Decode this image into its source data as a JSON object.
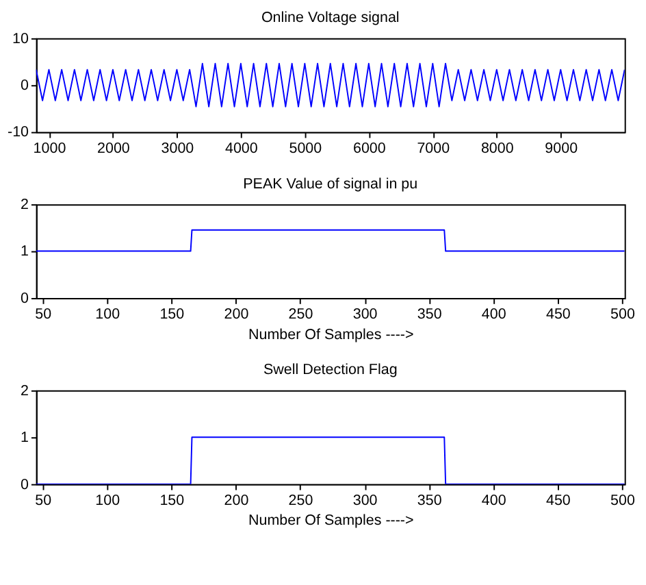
{
  "chart_data": [
    {
      "type": "line",
      "title": "Online Voltage signal",
      "x": [
        800,
        900,
        1000,
        1100,
        1200,
        1300,
        1400,
        1500,
        1600,
        1700,
        1800,
        1900,
        2000,
        2100,
        2200,
        2300,
        2400,
        2500,
        2600,
        2700,
        2800,
        2900,
        3000,
        3100,
        3200,
        3300,
        3400,
        3500,
        3600,
        3700,
        3800,
        3900,
        4000,
        4100,
        4200,
        4300,
        4400,
        4500,
        4600,
        4700,
        4800,
        4900,
        5000,
        5100,
        5200,
        5300,
        5400,
        5500,
        5600,
        5700,
        5800,
        5900,
        6000,
        6100,
        6200,
        6300,
        6400,
        6500,
        6600,
        6700,
        6800,
        6900,
        7000,
        7100,
        7200,
        7300,
        7400,
        7500,
        7600,
        7700,
        7800,
        7900,
        8000,
        8100,
        8200,
        8300,
        8400,
        8500,
        8600,
        8700,
        8800,
        8900,
        9000,
        9100,
        9200,
        9300,
        9400,
        9500,
        9600,
        9700,
        9800,
        9900,
        10000
      ],
      "series": [
        {
          "color": "#0000ff",
          "values": [
            3.3,
            -3.3,
            3.3,
            -3.3,
            3.3,
            -3.3,
            3.3,
            -3.3,
            3.3,
            -3.3,
            3.3,
            -3.3,
            3.3,
            -3.3,
            3.3,
            -3.3,
            3.3,
            -3.3,
            3.3,
            -3.3,
            3.3,
            -3.3,
            3.3,
            -3.3,
            3.3,
            -4.6,
            4.6,
            -4.6,
            4.6,
            -4.6,
            4.6,
            -4.6,
            4.6,
            -4.6,
            4.6,
            -4.6,
            4.6,
            -4.6,
            4.6,
            -4.6,
            4.6,
            -4.6,
            4.6,
            -4.6,
            4.6,
            -4.6,
            4.6,
            -4.6,
            4.6,
            -4.6,
            4.6,
            -4.6,
            4.6,
            -4.6,
            4.6,
            -4.6,
            4.6,
            -4.6,
            4.6,
            -4.6,
            4.6,
            -4.6,
            4.6,
            -4.6,
            4.6,
            -3.3,
            3.3,
            -3.3,
            3.3,
            -3.3,
            3.3,
            -3.3,
            3.3,
            -3.3,
            3.3,
            -3.3,
            3.3,
            -3.3,
            3.3,
            -3.3,
            3.3,
            -3.3,
            3.3,
            -3.3,
            3.3,
            -3.3,
            3.3,
            -3.3,
            3.3,
            -3.3,
            3.3,
            -3.3,
            3.3
          ]
        }
      ],
      "xlim": [
        800,
        10000
      ],
      "ylim": [
        -10,
        10
      ],
      "xticks": [
        1000,
        2000,
        3000,
        4000,
        5000,
        6000,
        7000,
        8000,
        9000
      ],
      "yticks": [
        -10,
        0,
        10
      ]
    },
    {
      "type": "line",
      "title": "PEAK Value of signal in pu",
      "xlabel": "Number Of Samples ---->",
      "x": [
        45,
        165,
        166,
        362,
        363,
        502
      ],
      "series": [
        {
          "color": "#0000ff",
          "values": [
            1,
            1,
            1.45,
            1.45,
            1,
            1
          ]
        }
      ],
      "xlim": [
        45,
        502
      ],
      "ylim": [
        0,
        2
      ],
      "xticks": [
        50,
        100,
        150,
        200,
        250,
        300,
        350,
        400,
        450,
        500
      ],
      "yticks": [
        0,
        1,
        2
      ]
    },
    {
      "type": "line",
      "title": "Swell Detection Flag",
      "xlabel": "Number Of Samples ---->",
      "x": [
        45,
        165,
        166,
        362,
        363,
        502
      ],
      "series": [
        {
          "color": "#0000ff",
          "values": [
            0,
            0,
            1,
            1,
            0,
            0
          ]
        }
      ],
      "xlim": [
        45,
        502
      ],
      "ylim": [
        0,
        2
      ],
      "xticks": [
        50,
        100,
        150,
        200,
        250,
        300,
        350,
        400,
        450,
        500
      ],
      "yticks": [
        0,
        1,
        2
      ]
    }
  ]
}
